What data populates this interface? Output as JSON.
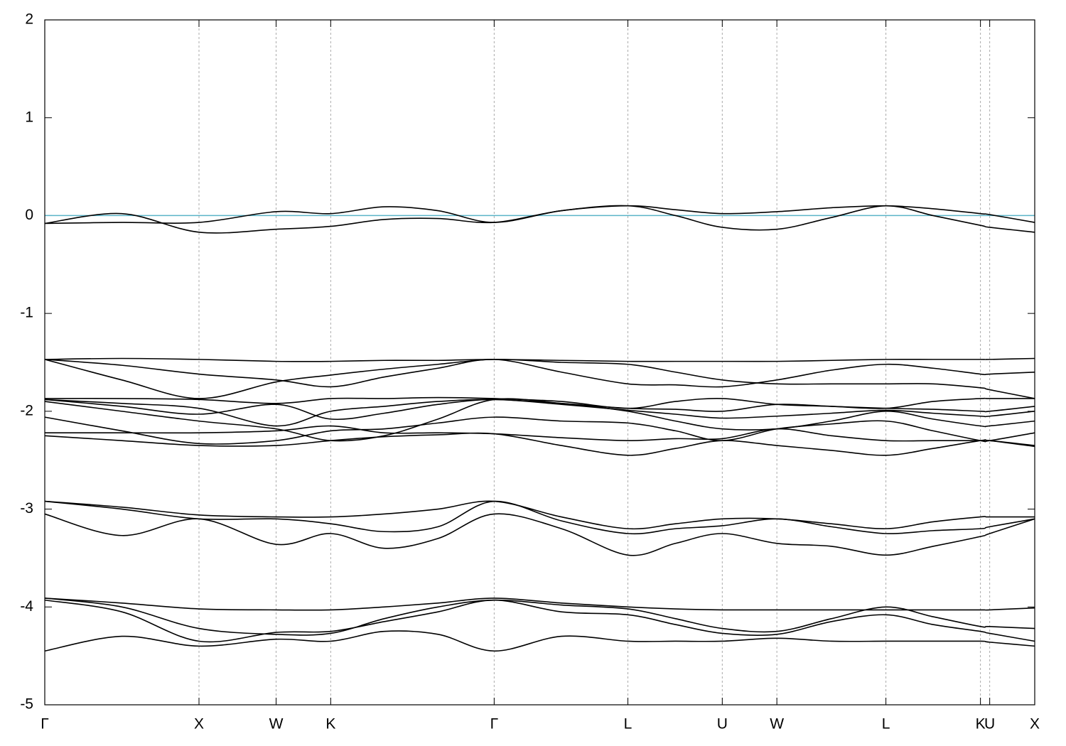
{
  "chart_data": {
    "type": "line",
    "x": [
      0,
      0.5,
      1,
      1.5,
      1.854,
      2.2,
      2.55,
      2.914,
      3.35,
      3.781,
      4.09,
      4.393,
      4.747,
      5.1,
      5.454,
      5.76,
      6.067,
      6.127,
      6.419
    ],
    "xlim": [
      0,
      6.419
    ],
    "xticks": [
      {
        "value": 0,
        "label": "Γ"
      },
      {
        "value": 1,
        "label": "X"
      },
      {
        "value": 1.5,
        "label": "W"
      },
      {
        "value": 1.854,
        "label": "K"
      },
      {
        "value": 2.914,
        "label": "Γ"
      },
      {
        "value": 3.781,
        "label": "L"
      },
      {
        "value": 4.393,
        "label": "U"
      },
      {
        "value": 4.747,
        "label": "W"
      },
      {
        "value": 5.454,
        "label": "L"
      },
      {
        "value": 6.067,
        "label": "K"
      },
      {
        "value": 6.127,
        "label": "U"
      },
      {
        "value": 6.419,
        "label": "X"
      }
    ],
    "ylim": [
      -5,
      2
    ],
    "yticks": [
      -5,
      -4,
      -3,
      -2,
      -1,
      0,
      1,
      2
    ],
    "xgrid": true,
    "reference_line": 0,
    "reference_color": "#5ab4c8",
    "series": [
      {
        "color": "#000000",
        "values": [
          -0.08,
          0.02,
          -0.17,
          -0.14,
          -0.11,
          -0.04,
          -0.03,
          -0.07,
          0.05,
          0.1,
          0.0,
          -0.12,
          -0.14,
          -0.02,
          0.1,
          0.0,
          -0.1,
          -0.12,
          -0.17
        ]
      },
      {
        "color": "#000000",
        "values": [
          -0.08,
          -0.07,
          -0.07,
          0.04,
          0.02,
          0.09,
          0.05,
          -0.07,
          0.05,
          0.1,
          0.06,
          0.02,
          0.04,
          0.08,
          0.1,
          0.07,
          0.02,
          0.01,
          -0.07
        ]
      },
      {
        "color": "#000000",
        "values": [
          -1.47,
          -1.46,
          -1.47,
          -1.49,
          -1.49,
          -1.48,
          -1.48,
          -1.47,
          -1.48,
          -1.49,
          -1.49,
          -1.49,
          -1.49,
          -1.48,
          -1.47,
          -1.47,
          -1.47,
          -1.47,
          -1.46
        ]
      },
      {
        "color": "#000000",
        "values": [
          -1.47,
          -1.53,
          -1.62,
          -1.68,
          -1.75,
          -1.65,
          -1.56,
          -1.47,
          -1.6,
          -1.72,
          -1.73,
          -1.75,
          -1.68,
          -1.58,
          -1.52,
          -1.56,
          -1.62,
          -1.62,
          -1.6
        ]
      },
      {
        "color": "#000000",
        "values": [
          -1.47,
          -1.68,
          -1.87,
          -1.7,
          -1.63,
          -1.57,
          -1.52,
          -1.47,
          -1.5,
          -1.52,
          -1.6,
          -1.68,
          -1.72,
          -1.72,
          -1.72,
          -1.72,
          -1.76,
          -1.78,
          -1.87
        ]
      },
      {
        "color": "#000000",
        "values": [
          -1.87,
          -1.87,
          -1.88,
          -1.92,
          -1.87,
          -1.87,
          -1.86,
          -1.87,
          -1.9,
          -1.97,
          -1.9,
          -1.87,
          -1.93,
          -1.95,
          -1.97,
          -1.9,
          -1.87,
          -1.87,
          -1.87
        ]
      },
      {
        "color": "#000000",
        "values": [
          -1.88,
          -1.92,
          -1.97,
          -2.15,
          -2.0,
          -1.95,
          -1.9,
          -1.88,
          -1.92,
          -1.97,
          -1.98,
          -2.0,
          -1.93,
          -1.95,
          -1.97,
          -1.98,
          -2.0,
          -2.0,
          -1.95
        ]
      },
      {
        "color": "#000000",
        "values": [
          -1.88,
          -1.95,
          -2.03,
          -1.93,
          -2.08,
          -2.02,
          -1.93,
          -1.88,
          -1.93,
          -1.99,
          -2.03,
          -2.07,
          -2.05,
          -2.02,
          -1.99,
          -2.02,
          -2.05,
          -2.05,
          -2.0
        ]
      },
      {
        "color": "#000000",
        "values": [
          -1.9,
          -2.0,
          -2.1,
          -2.18,
          -2.3,
          -2.25,
          -2.08,
          -1.88,
          -1.92,
          -2.0,
          -2.1,
          -2.18,
          -2.18,
          -2.1,
          -2.0,
          -2.08,
          -2.15,
          -2.15,
          -2.1
        ]
      },
      {
        "color": "#000000",
        "values": [
          -2.06,
          -2.2,
          -2.33,
          -2.3,
          -2.2,
          -2.18,
          -2.12,
          -2.06,
          -2.1,
          -2.12,
          -2.2,
          -2.3,
          -2.18,
          -2.13,
          -2.1,
          -2.2,
          -2.3,
          -2.3,
          -2.22
        ]
      },
      {
        "color": "#000000",
        "values": [
          -2.22,
          -2.22,
          -2.22,
          -2.2,
          -2.15,
          -2.22,
          -2.22,
          -2.23,
          -2.27,
          -2.3,
          -2.28,
          -2.28,
          -2.18,
          -2.25,
          -2.3,
          -2.3,
          -2.3,
          -2.3,
          -2.35
        ]
      },
      {
        "color": "#000000",
        "values": [
          -2.25,
          -2.3,
          -2.35,
          -2.35,
          -2.3,
          -2.26,
          -2.24,
          -2.23,
          -2.35,
          -2.45,
          -2.38,
          -2.3,
          -2.35,
          -2.4,
          -2.45,
          -2.38,
          -2.3,
          -2.3,
          -2.36
        ]
      },
      {
        "color": "#000000",
        "values": [
          -2.92,
          -2.98,
          -3.06,
          -3.08,
          -3.08,
          -3.05,
          -3.0,
          -2.92,
          -3.08,
          -3.2,
          -3.15,
          -3.1,
          -3.1,
          -3.15,
          -3.2,
          -3.13,
          -3.08,
          -3.08,
          -3.08
        ]
      },
      {
        "color": "#000000",
        "values": [
          -2.92,
          -3.0,
          -3.1,
          -3.1,
          -3.15,
          -3.23,
          -3.18,
          -2.92,
          -3.12,
          -3.25,
          -3.2,
          -3.17,
          -3.1,
          -3.18,
          -3.25,
          -3.22,
          -3.2,
          -3.18,
          -3.1
        ]
      },
      {
        "color": "#000000",
        "values": [
          -3.05,
          -3.27,
          -3.1,
          -3.36,
          -3.25,
          -3.4,
          -3.3,
          -3.05,
          -3.2,
          -3.47,
          -3.35,
          -3.25,
          -3.35,
          -3.38,
          -3.47,
          -3.38,
          -3.28,
          -3.25,
          -3.1
        ]
      },
      {
        "color": "#000000",
        "values": [
          -3.91,
          -3.96,
          -4.02,
          -4.03,
          -4.03,
          -4.0,
          -3.96,
          -3.91,
          -3.96,
          -4.0,
          -4.02,
          -4.03,
          -4.03,
          -4.03,
          -4.03,
          -4.03,
          -4.03,
          -4.03,
          -4.01
        ]
      },
      {
        "color": "#000000",
        "values": [
          -3.91,
          -4.0,
          -4.22,
          -4.28,
          -4.27,
          -4.12,
          -4.0,
          -3.93,
          -3.98,
          -4.02,
          -4.12,
          -4.22,
          -4.25,
          -4.12,
          -4.0,
          -4.1,
          -4.2,
          -4.2,
          -4.22
        ]
      },
      {
        "color": "#000000",
        "values": [
          -3.93,
          -4.05,
          -4.35,
          -4.26,
          -4.25,
          -4.15,
          -4.05,
          -3.93,
          -4.05,
          -4.08,
          -4.18,
          -4.27,
          -4.28,
          -4.15,
          -4.08,
          -4.18,
          -4.25,
          -4.27,
          -4.35
        ]
      },
      {
        "color": "#000000",
        "values": [
          -4.45,
          -4.3,
          -4.4,
          -4.33,
          -4.35,
          -4.25,
          -4.28,
          -4.45,
          -4.3,
          -4.35,
          -4.35,
          -4.35,
          -4.32,
          -4.35,
          -4.35,
          -4.35,
          -4.35,
          -4.36,
          -4.4
        ]
      }
    ]
  }
}
